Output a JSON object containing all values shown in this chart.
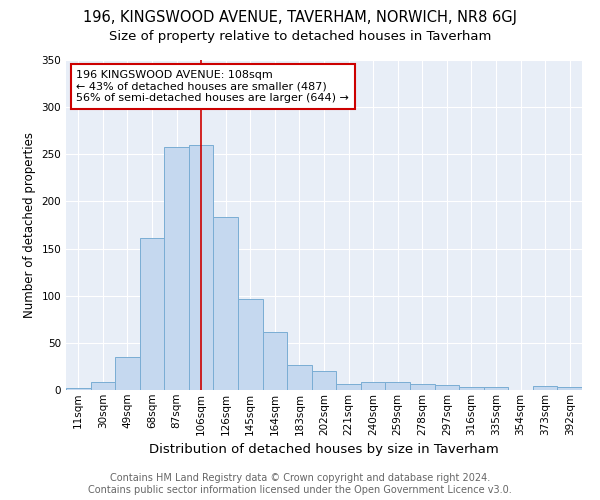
{
  "title": "196, KINGSWOOD AVENUE, TAVERHAM, NORWICH, NR8 6GJ",
  "subtitle": "Size of property relative to detached houses in Taverham",
  "xlabel": "Distribution of detached houses by size in Taverham",
  "ylabel": "Number of detached properties",
  "categories": [
    "11sqm",
    "30sqm",
    "49sqm",
    "68sqm",
    "87sqm",
    "106sqm",
    "126sqm",
    "145sqm",
    "164sqm",
    "183sqm",
    "202sqm",
    "221sqm",
    "240sqm",
    "259sqm",
    "278sqm",
    "297sqm",
    "316sqm",
    "335sqm",
    "354sqm",
    "373sqm",
    "392sqm"
  ],
  "values": [
    2,
    8,
    35,
    161,
    258,
    260,
    183,
    96,
    61,
    27,
    20,
    6,
    9,
    8,
    6,
    5,
    3,
    3,
    0,
    4,
    3
  ],
  "bar_color": "#c5d8ef",
  "bar_edge_color": "#7aadd4",
  "vline_index": 5,
  "vline_color": "#cc0000",
  "annotation_text": "196 KINGSWOOD AVENUE: 108sqm\n← 43% of detached houses are smaller (487)\n56% of semi-detached houses are larger (644) →",
  "annotation_box_color": "#ffffff",
  "annotation_box_edge": "#cc0000",
  "ylim": [
    0,
    350
  ],
  "yticks": [
    0,
    50,
    100,
    150,
    200,
    250,
    300,
    350
  ],
  "footer_line1": "Contains HM Land Registry data © Crown copyright and database right 2024.",
  "footer_line2": "Contains public sector information licensed under the Open Government Licence v3.0.",
  "plot_background": "#e8eef7",
  "title_fontsize": 10.5,
  "subtitle_fontsize": 9.5,
  "xlabel_fontsize": 9.5,
  "ylabel_fontsize": 8.5,
  "tick_fontsize": 7.5,
  "footer_fontsize": 7,
  "annotation_fontsize": 8
}
